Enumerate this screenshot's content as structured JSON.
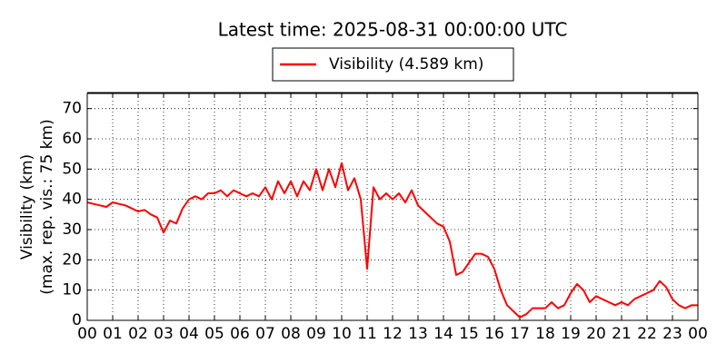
{
  "chart_data": {
    "type": "line",
    "title": "Latest time: 2025-08-31 00:00:00 UTC",
    "ylabel": [
      "Visibility (km)",
      "(max. rep. vis.: 75 km)"
    ],
    "x": [
      0,
      0.25,
      0.5,
      0.75,
      1,
      1.25,
      1.5,
      1.75,
      2,
      2.25,
      2.5,
      2.75,
      3,
      3.25,
      3.5,
      3.75,
      4,
      4.25,
      4.5,
      4.75,
      5,
      5.25,
      5.5,
      5.75,
      6,
      6.25,
      6.5,
      6.75,
      7,
      7.25,
      7.5,
      7.75,
      8,
      8.25,
      8.5,
      8.75,
      9,
      9.25,
      9.5,
      9.75,
      10,
      10.25,
      10.5,
      10.75,
      11,
      11.25,
      11.5,
      11.75,
      12,
      12.25,
      12.5,
      12.75,
      13,
      13.25,
      13.5,
      13.75,
      14,
      14.25,
      14.5,
      14.75,
      15,
      15.25,
      15.5,
      15.75,
      16,
      16.25,
      16.5,
      16.75,
      17,
      17.25,
      17.5,
      17.75,
      18,
      18.25,
      18.5,
      18.75,
      19,
      19.25,
      19.5,
      19.75,
      20,
      20.25,
      20.5,
      20.75,
      21,
      21.25,
      21.5,
      21.75,
      22,
      22.25,
      22.5,
      22.75,
      23,
      23.25,
      23.5,
      23.75,
      24
    ],
    "series": [
      {
        "name": "Visibility (4.589 km)",
        "color": "#ff0000",
        "values": [
          39,
          38.5,
          38,
          37.5,
          39,
          38.5,
          38,
          37,
          36,
          36.5,
          35,
          34,
          29,
          33,
          32,
          37,
          40,
          41,
          40,
          42,
          42,
          43,
          41,
          43,
          42,
          41,
          42,
          41,
          44,
          40,
          46,
          42,
          46,
          41,
          46,
          43,
          50,
          43,
          50,
          44,
          52,
          43,
          47,
          40,
          17,
          44,
          40,
          42,
          40,
          42,
          39,
          43,
          38,
          36,
          34,
          32,
          31,
          26,
          15,
          16,
          19,
          22,
          22,
          21,
          17,
          10,
          5,
          3,
          1,
          2,
          4,
          4,
          4,
          6,
          4,
          5,
          9,
          12,
          10,
          6,
          8,
          7,
          6,
          5,
          6,
          5,
          7,
          8,
          9,
          10,
          13,
          11,
          7,
          5,
          4,
          5,
          5
        ]
      }
    ],
    "xlim": [
      0,
      24
    ],
    "xticks": [
      {
        "value": 0,
        "label": "00"
      },
      {
        "value": 1,
        "label": "01"
      },
      {
        "value": 2,
        "label": "02"
      },
      {
        "value": 3,
        "label": "03"
      },
      {
        "value": 4,
        "label": "04"
      },
      {
        "value": 5,
        "label": "05"
      },
      {
        "value": 6,
        "label": "06"
      },
      {
        "value": 7,
        "label": "07"
      },
      {
        "value": 8,
        "label": "08"
      },
      {
        "value": 9,
        "label": "09"
      },
      {
        "value": 10,
        "label": "10"
      },
      {
        "value": 11,
        "label": "11"
      },
      {
        "value": 12,
        "label": "12"
      },
      {
        "value": 13,
        "label": "13"
      },
      {
        "value": 14,
        "label": "14"
      },
      {
        "value": 15,
        "label": "15"
      },
      {
        "value": 16,
        "label": "16"
      },
      {
        "value": 17,
        "label": "17"
      },
      {
        "value": 18,
        "label": "18"
      },
      {
        "value": 19,
        "label": "19"
      },
      {
        "value": 20,
        "label": "20"
      },
      {
        "value": 21,
        "label": "21"
      },
      {
        "value": 22,
        "label": "22"
      },
      {
        "value": 23,
        "label": "23"
      },
      {
        "value": 24,
        "label": "00"
      }
    ],
    "ylim": [
      0,
      75
    ],
    "yticks": [
      0,
      10,
      20,
      30,
      40,
      50,
      60,
      70
    ],
    "grid": true,
    "legend": "top"
  }
}
